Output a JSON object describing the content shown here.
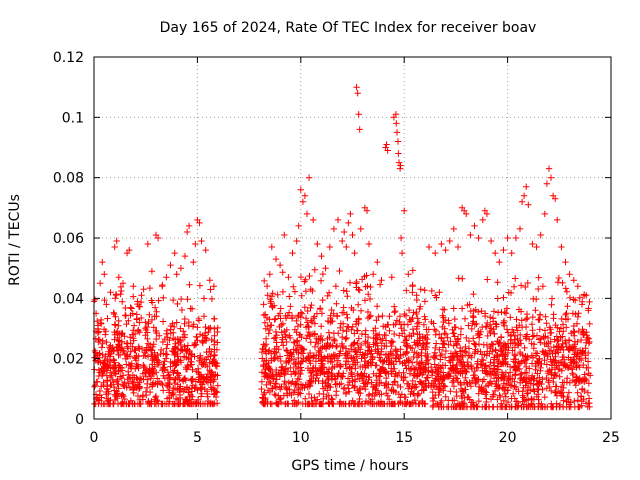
{
  "chart_data": {
    "type": "scatter",
    "title": "Day 165 of 2024, Rate Of TEC Index for receiver boav",
    "xlabel": "GPS time / hours",
    "ylabel": "ROTI / TECUs",
    "xlim": [
      0,
      25
    ],
    "ylim": [
      0,
      0.12
    ],
    "x_ticks": [
      0,
      5,
      10,
      15,
      20,
      25
    ],
    "x_tick_labels": [
      "0",
      "5",
      "10",
      "15",
      "20",
      "25"
    ],
    "y_ticks": [
      0,
      0.02,
      0.04,
      0.06,
      0.08,
      0.1,
      0.12
    ],
    "y_tick_labels": [
      "0",
      "0.02",
      "0.04",
      "0.06",
      "0.08",
      "0.1",
      "0.12"
    ],
    "grid": true,
    "marker": "+",
    "color": "#ff0000",
    "series": [
      {
        "name": "ROTI",
        "points": [
          [
            0.0,
            0.039
          ],
          [
            0.1,
            0.035
          ],
          [
            0.2,
            0.031
          ],
          [
            0.3,
            0.045
          ],
          [
            0.4,
            0.052
          ],
          [
            0.5,
            0.048
          ],
          [
            0.6,
            0.038
          ],
          [
            0.8,
            0.042
          ],
          [
            1.0,
            0.057
          ],
          [
            1.1,
            0.059
          ],
          [
            1.2,
            0.047
          ],
          [
            1.4,
            0.045
          ],
          [
            1.6,
            0.055
          ],
          [
            1.7,
            0.056
          ],
          [
            1.9,
            0.044
          ],
          [
            2.1,
            0.039
          ],
          [
            2.4,
            0.043
          ],
          [
            2.6,
            0.058
          ],
          [
            2.8,
            0.049
          ],
          [
            3.0,
            0.061
          ],
          [
            3.1,
            0.06
          ],
          [
            3.3,
            0.044
          ],
          [
            3.5,
            0.047
          ],
          [
            3.7,
            0.051
          ],
          [
            3.9,
            0.055
          ],
          [
            4.0,
            0.048
          ],
          [
            4.2,
            0.05
          ],
          [
            4.4,
            0.054
          ],
          [
            4.5,
            0.062
          ],
          [
            4.6,
            0.064
          ],
          [
            4.8,
            0.052
          ],
          [
            4.9,
            0.058
          ],
          [
            5.0,
            0.066
          ],
          [
            5.1,
            0.065
          ],
          [
            5.2,
            0.059
          ],
          [
            5.4,
            0.056
          ],
          [
            5.6,
            0.046
          ],
          [
            5.8,
            0.044
          ],
          [
            8.2,
            0.038
          ],
          [
            8.4,
            0.041
          ],
          [
            8.5,
            0.048
          ],
          [
            8.6,
            0.057
          ],
          [
            8.8,
            0.053
          ],
          [
            9.0,
            0.051
          ],
          [
            9.2,
            0.061
          ],
          [
            9.4,
            0.047
          ],
          [
            9.6,
            0.055
          ],
          [
            9.8,
            0.059
          ],
          [
            9.9,
            0.064
          ],
          [
            10.0,
            0.076
          ],
          [
            10.1,
            0.072
          ],
          [
            10.2,
            0.074
          ],
          [
            10.3,
            0.068
          ],
          [
            10.4,
            0.08
          ],
          [
            10.6,
            0.066
          ],
          [
            10.8,
            0.058
          ],
          [
            11.0,
            0.054
          ],
          [
            11.2,
            0.05
          ],
          [
            11.4,
            0.057
          ],
          [
            11.6,
            0.063
          ],
          [
            11.8,
            0.066
          ],
          [
            12.0,
            0.059
          ],
          [
            12.1,
            0.062
          ],
          [
            12.2,
            0.057
          ],
          [
            12.3,
            0.065
          ],
          [
            12.4,
            0.068
          ],
          [
            12.5,
            0.061
          ],
          [
            12.6,
            0.055
          ],
          [
            12.7,
            0.11
          ],
          [
            12.75,
            0.108
          ],
          [
            12.8,
            0.101
          ],
          [
            12.85,
            0.096
          ],
          [
            12.9,
            0.063
          ],
          [
            13.1,
            0.07
          ],
          [
            13.2,
            0.069
          ],
          [
            13.3,
            0.058
          ],
          [
            13.5,
            0.048
          ],
          [
            13.7,
            0.052
          ],
          [
            13.9,
            0.046
          ],
          [
            14.1,
            0.09
          ],
          [
            14.15,
            0.091
          ],
          [
            14.2,
            0.089
          ],
          [
            14.4,
            0.047
          ],
          [
            14.5,
            0.1
          ],
          [
            14.6,
            0.101
          ],
          [
            14.62,
            0.098
          ],
          [
            14.65,
            0.095
          ],
          [
            14.7,
            0.092
          ],
          [
            14.72,
            0.088
          ],
          [
            14.75,
            0.085
          ],
          [
            14.8,
            0.083
          ],
          [
            14.82,
            0.084
          ],
          [
            14.85,
            0.06
          ],
          [
            14.9,
            0.055
          ],
          [
            15.0,
            0.069
          ],
          [
            15.2,
            0.048
          ],
          [
            15.4,
            0.044
          ],
          [
            15.6,
            0.041
          ],
          [
            15.8,
            0.043
          ],
          [
            16.0,
            0.039
          ],
          [
            16.2,
            0.057
          ],
          [
            16.5,
            0.055
          ],
          [
            16.7,
            0.042
          ],
          [
            16.8,
            0.058
          ],
          [
            17.0,
            0.056
          ],
          [
            17.2,
            0.059
          ],
          [
            17.4,
            0.063
          ],
          [
            17.6,
            0.057
          ],
          [
            17.8,
            0.07
          ],
          [
            17.9,
            0.069
          ],
          [
            18.0,
            0.068
          ],
          [
            18.2,
            0.061
          ],
          [
            18.4,
            0.064
          ],
          [
            18.6,
            0.06
          ],
          [
            18.8,
            0.066
          ],
          [
            18.9,
            0.069
          ],
          [
            19.0,
            0.068
          ],
          [
            19.2,
            0.059
          ],
          [
            19.4,
            0.055
          ],
          [
            19.6,
            0.052
          ],
          [
            19.8,
            0.056
          ],
          [
            20.0,
            0.06
          ],
          [
            20.2,
            0.055
          ],
          [
            20.4,
            0.06
          ],
          [
            20.6,
            0.063
          ],
          [
            20.7,
            0.072
          ],
          [
            20.8,
            0.074
          ],
          [
            20.9,
            0.077
          ],
          [
            21.0,
            0.071
          ],
          [
            21.2,
            0.058
          ],
          [
            21.4,
            0.057
          ],
          [
            21.6,
            0.061
          ],
          [
            21.8,
            0.068
          ],
          [
            21.9,
            0.078
          ],
          [
            22.0,
            0.083
          ],
          [
            22.1,
            0.08
          ],
          [
            22.2,
            0.074
          ],
          [
            22.3,
            0.073
          ],
          [
            22.4,
            0.066
          ],
          [
            22.6,
            0.057
          ],
          [
            22.8,
            0.052
          ],
          [
            23.0,
            0.048
          ],
          [
            23.2,
            0.046
          ],
          [
            23.4,
            0.044
          ],
          [
            23.6,
            0.038
          ],
          [
            23.8,
            0.041
          ],
          [
            23.9,
            0.036
          ]
        ],
        "dense_bands": [
          {
            "x_start": 0.0,
            "x_end": 6.0,
            "y_min": 0.005,
            "y_max": 0.045,
            "mode": 0.016
          },
          {
            "x_start": 8.1,
            "x_end": 16.2,
            "y_min": 0.005,
            "y_max": 0.05,
            "mode": 0.018
          },
          {
            "x_start": 16.3,
            "x_end": 24.0,
            "y_min": 0.004,
            "y_max": 0.048,
            "mode": 0.017
          }
        ],
        "gap": [
          6.0,
          8.1
        ]
      }
    ]
  }
}
